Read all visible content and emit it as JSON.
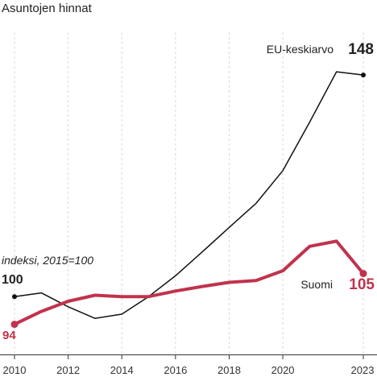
{
  "chart_data": {
    "type": "line",
    "title": "Asuntojen hinnat",
    "subtitle": "indeksi, 2015=100",
    "x": [
      2010,
      2011,
      2012,
      2013,
      2014,
      2015,
      2016,
      2017,
      2018,
      2019,
      2020,
      2021,
      2022,
      2023
    ],
    "x_tick_labels": [
      "2010",
      "2012",
      "2014",
      "2016",
      "2018",
      "2020",
      "2023"
    ],
    "x_ticks": [
      2010,
      2012,
      2014,
      2016,
      2018,
      2020,
      2023
    ],
    "ylim": [
      88,
      155
    ],
    "grid": true,
    "series": [
      {
        "name": "EU-keskiarvo",
        "color": "#111111",
        "values": [
          100,
          100.8,
          97.8,
          95.3,
          96.2,
          100,
          104.5,
          109.7,
          115,
          120.2,
          127.3,
          137.8,
          148.7,
          148
        ],
        "end_label": "148",
        "start_label": "100"
      },
      {
        "name": "Suomi",
        "color": "#c0334d",
        "values": [
          94,
          96.8,
          99,
          100.3,
          100,
          100,
          101.2,
          102.2,
          103.1,
          103.5,
          105.6,
          110.9,
          112,
          105
        ],
        "end_label": "105",
        "start_label": "94"
      }
    ]
  }
}
